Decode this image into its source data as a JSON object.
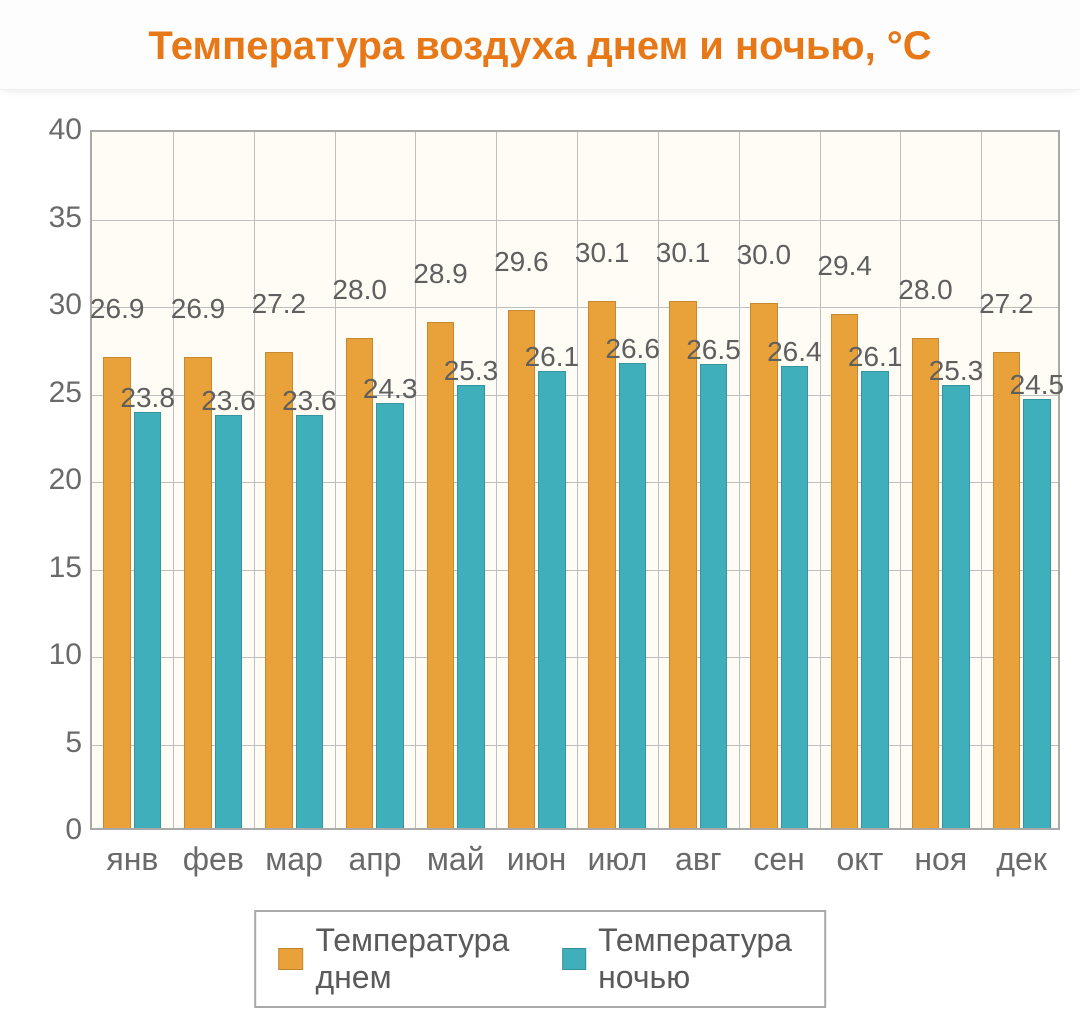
{
  "title": "Температура воздуха днем и ночью, °C",
  "title_color": "#e77817",
  "title_fontsize": 40,
  "chart": {
    "type": "bar",
    "background_color": "#fffcf5",
    "grid_color": "#bfbfbf",
    "border_color": "#a9a9a9",
    "ylim": [
      0,
      40
    ],
    "ytick_step": 5,
    "yticks": [
      0,
      5,
      10,
      15,
      20,
      25,
      30,
      35,
      40
    ],
    "tick_fontsize": 30,
    "tick_color": "#6a6a6a",
    "value_label_fontsize": 28,
    "value_label_color": "#5f5f5f",
    "bar_width_ratio": 0.34,
    "categories": [
      "янв",
      "фев",
      "мар",
      "апр",
      "май",
      "июн",
      "июл",
      "авг",
      "сен",
      "окт",
      "ноя",
      "дек"
    ],
    "series": [
      {
        "name": "Температура днем",
        "color": "#e9a13a",
        "values": [
          26.9,
          26.9,
          27.2,
          28.0,
          28.9,
          29.6,
          30.1,
          30.1,
          30.0,
          29.4,
          28.0,
          27.2
        ]
      },
      {
        "name": "Температура ночью",
        "color": "#3fb0bb",
        "values": [
          23.8,
          23.6,
          23.6,
          24.3,
          25.3,
          26.1,
          26.6,
          26.5,
          26.4,
          26.1,
          25.3,
          24.5
        ]
      }
    ]
  },
  "legend": {
    "border_color": "#a9a9a9",
    "fontsize": 32,
    "text_color": "#5a5a5a"
  }
}
